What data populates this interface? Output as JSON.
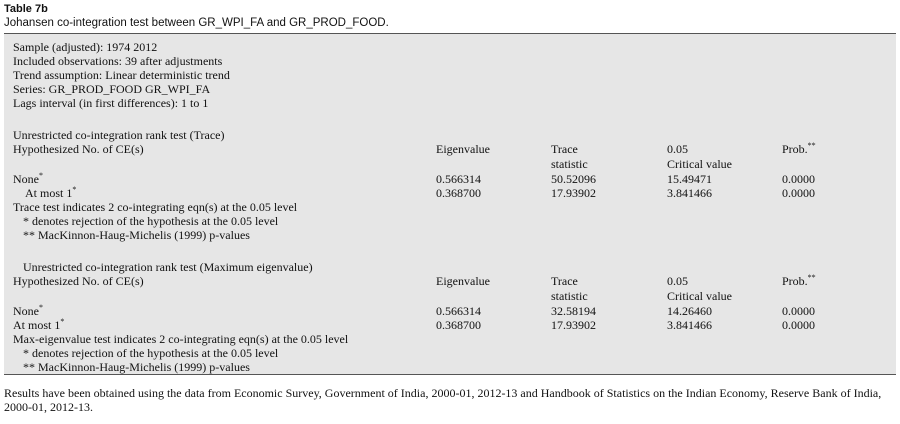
{
  "caption": {
    "table_number": "Table 7b",
    "title": "Johansen co-integration test between GR_WPI_FA and GR_PROD_FOOD."
  },
  "header": {
    "sample": "Sample (adjusted): 1974 2012",
    "observations": "Included observations: 39 after adjustments",
    "trend": "Trend assumption: Linear deterministic trend",
    "series": "Series: GR_PROD_FOOD GR_WPI_FA",
    "lags": "Lags interval (in first differences): 1 to 1"
  },
  "trace_test": {
    "heading": "Unrestricted co-integration rank test (Trace)",
    "col_hyp": "Hypothesized No. of CE(s)",
    "col_eigen": "Eigenvalue",
    "col_stat_1": "Trace",
    "col_stat_2": "statistic",
    "col_crit_1": "0.05",
    "col_crit_2": "Critical value",
    "col_prob": "Prob.",
    "col_prob_sup": "**",
    "rows": [
      {
        "hyp": "None",
        "sup": "*",
        "eigen": "0.566314",
        "stat": "50.52096",
        "crit": "15.49471",
        "prob": "0.0000"
      },
      {
        "hyp": "At most 1",
        "sup": "*",
        "eigen": "0.368700",
        "stat": "17.93902",
        "crit": "3.841466",
        "prob": "0.0000"
      }
    ],
    "note_1": "Trace test indicates 2 co-integrating eqn(s) at the 0.05 level",
    "note_2": "* denotes rejection of the hypothesis at the 0.05 level",
    "note_3": "** MacKinnon-Haug-Michelis (1999) p-values"
  },
  "max_eigen_test": {
    "heading": "Unrestricted co-integration rank test (Maximum eigenvalue)",
    "col_hyp": "Hypothesized No. of CE(s)",
    "col_eigen": "Eigenvalue",
    "col_stat_1": "Trace",
    "col_stat_2": "statistic",
    "col_crit_1": "0.05",
    "col_crit_2": "Critical value",
    "col_prob": "Prob.",
    "col_prob_sup": "**",
    "rows": [
      {
        "hyp": "None",
        "sup": "*",
        "eigen": "0.566314",
        "stat": "32.58194",
        "crit": "14.26460",
        "prob": "0.0000"
      },
      {
        "hyp": "At most 1",
        "sup": "*",
        "eigen": "0.368700",
        "stat": "17.93902",
        "crit": "3.841466",
        "prob": "0.0000"
      }
    ],
    "note_1": "Max-eigenvalue test indicates 2 co-integrating eqn(s) at the 0.05 level",
    "note_2": "* denotes rejection of the hypothesis at the 0.05 level",
    "note_3": "** MacKinnon-Haug-Michelis (1999) p-values"
  },
  "footnote": "Results have been obtained using the data from Economic Survey, Government of India, 2000-01, 2012-13 and Handbook of Statistics on the Indian Economy, Reserve Bank of India, 2000-01, 2012-13."
}
